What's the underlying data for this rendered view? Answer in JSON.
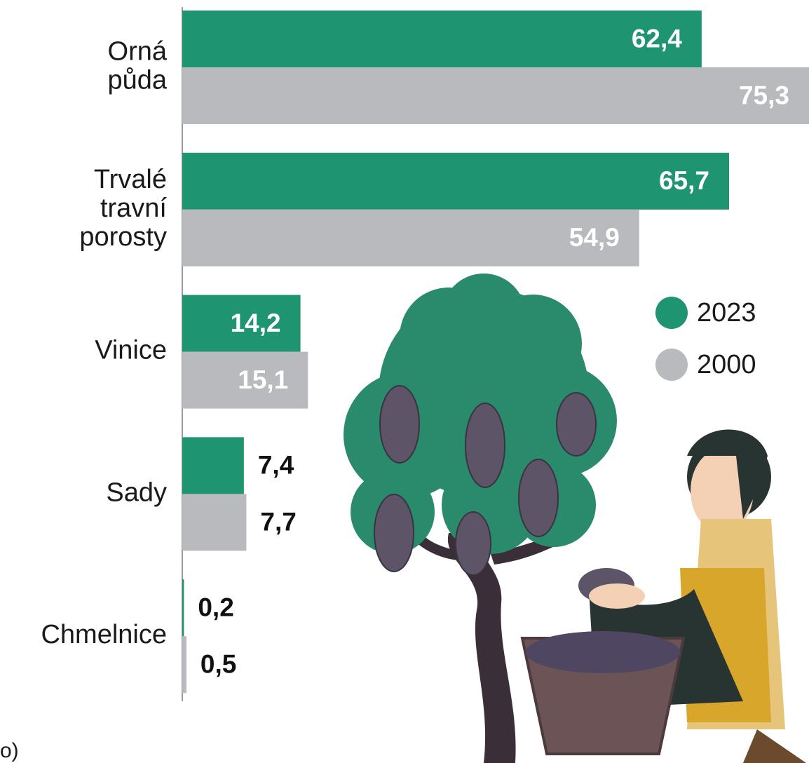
{
  "chart_data": {
    "type": "hbar",
    "categories": [
      "Orná půda",
      "Trvalé travní porosty",
      "Vinice",
      "Sady",
      "Chmelnice"
    ],
    "series": [
      {
        "name": "2023",
        "color": "#1e9470",
        "values": [
          62.4,
          65.7,
          14.2,
          7.4,
          0.2
        ],
        "value_labels": [
          "62,4",
          "65,7",
          "14,2",
          "7,4",
          "0,2"
        ]
      },
      {
        "name": "2000",
        "color": "#b9babe",
        "values": [
          75.3,
          54.9,
          15.1,
          7.7,
          0.5
        ],
        "value_labels": [
          "75,3",
          "54,9",
          "15,1",
          "7,7",
          "0,5"
        ]
      }
    ],
    "legend": "right",
    "note": "o)"
  }
}
